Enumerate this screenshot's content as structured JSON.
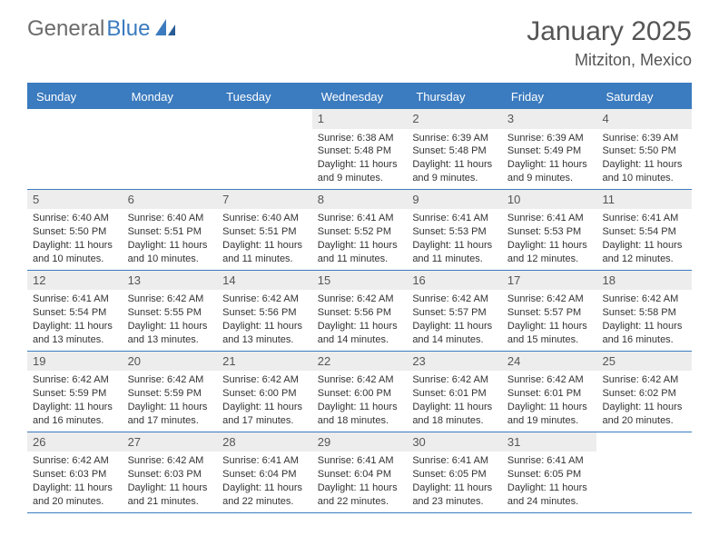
{
  "logo": {
    "text_gray": "General",
    "text_blue": "Blue"
  },
  "header": {
    "month_title": "January 2025",
    "location": "Mitziton, Mexico"
  },
  "colors": {
    "header_bar": "#3b7bbf",
    "weekday_bg": "#3b7bbf",
    "weekday_text": "#ffffff",
    "daynum_bg": "#ededed",
    "cell_border": "#3b7bbf",
    "body_text": "#333333",
    "title_text": "#555555"
  },
  "typography": {
    "month_title_fontsize": 30,
    "location_fontsize": 18,
    "weekday_fontsize": 13,
    "daynum_fontsize": 13,
    "cell_fontsize": 11
  },
  "calendar": {
    "weekdays": [
      "Sunday",
      "Monday",
      "Tuesday",
      "Wednesday",
      "Thursday",
      "Friday",
      "Saturday"
    ],
    "weeks": [
      [
        {
          "empty": true
        },
        {
          "empty": true
        },
        {
          "empty": true
        },
        {
          "day": "1",
          "sunrise": "Sunrise: 6:38 AM",
          "sunset": "Sunset: 5:48 PM",
          "daylight1": "Daylight: 11 hours",
          "daylight2": "and 9 minutes."
        },
        {
          "day": "2",
          "sunrise": "Sunrise: 6:39 AM",
          "sunset": "Sunset: 5:48 PM",
          "daylight1": "Daylight: 11 hours",
          "daylight2": "and 9 minutes."
        },
        {
          "day": "3",
          "sunrise": "Sunrise: 6:39 AM",
          "sunset": "Sunset: 5:49 PM",
          "daylight1": "Daylight: 11 hours",
          "daylight2": "and 9 minutes."
        },
        {
          "day": "4",
          "sunrise": "Sunrise: 6:39 AM",
          "sunset": "Sunset: 5:50 PM",
          "daylight1": "Daylight: 11 hours",
          "daylight2": "and 10 minutes."
        }
      ],
      [
        {
          "day": "5",
          "sunrise": "Sunrise: 6:40 AM",
          "sunset": "Sunset: 5:50 PM",
          "daylight1": "Daylight: 11 hours",
          "daylight2": "and 10 minutes."
        },
        {
          "day": "6",
          "sunrise": "Sunrise: 6:40 AM",
          "sunset": "Sunset: 5:51 PM",
          "daylight1": "Daylight: 11 hours",
          "daylight2": "and 10 minutes."
        },
        {
          "day": "7",
          "sunrise": "Sunrise: 6:40 AM",
          "sunset": "Sunset: 5:51 PM",
          "daylight1": "Daylight: 11 hours",
          "daylight2": "and 11 minutes."
        },
        {
          "day": "8",
          "sunrise": "Sunrise: 6:41 AM",
          "sunset": "Sunset: 5:52 PM",
          "daylight1": "Daylight: 11 hours",
          "daylight2": "and 11 minutes."
        },
        {
          "day": "9",
          "sunrise": "Sunrise: 6:41 AM",
          "sunset": "Sunset: 5:53 PM",
          "daylight1": "Daylight: 11 hours",
          "daylight2": "and 11 minutes."
        },
        {
          "day": "10",
          "sunrise": "Sunrise: 6:41 AM",
          "sunset": "Sunset: 5:53 PM",
          "daylight1": "Daylight: 11 hours",
          "daylight2": "and 12 minutes."
        },
        {
          "day": "11",
          "sunrise": "Sunrise: 6:41 AM",
          "sunset": "Sunset: 5:54 PM",
          "daylight1": "Daylight: 11 hours",
          "daylight2": "and 12 minutes."
        }
      ],
      [
        {
          "day": "12",
          "sunrise": "Sunrise: 6:41 AM",
          "sunset": "Sunset: 5:54 PM",
          "daylight1": "Daylight: 11 hours",
          "daylight2": "and 13 minutes."
        },
        {
          "day": "13",
          "sunrise": "Sunrise: 6:42 AM",
          "sunset": "Sunset: 5:55 PM",
          "daylight1": "Daylight: 11 hours",
          "daylight2": "and 13 minutes."
        },
        {
          "day": "14",
          "sunrise": "Sunrise: 6:42 AM",
          "sunset": "Sunset: 5:56 PM",
          "daylight1": "Daylight: 11 hours",
          "daylight2": "and 13 minutes."
        },
        {
          "day": "15",
          "sunrise": "Sunrise: 6:42 AM",
          "sunset": "Sunset: 5:56 PM",
          "daylight1": "Daylight: 11 hours",
          "daylight2": "and 14 minutes."
        },
        {
          "day": "16",
          "sunrise": "Sunrise: 6:42 AM",
          "sunset": "Sunset: 5:57 PM",
          "daylight1": "Daylight: 11 hours",
          "daylight2": "and 14 minutes."
        },
        {
          "day": "17",
          "sunrise": "Sunrise: 6:42 AM",
          "sunset": "Sunset: 5:57 PM",
          "daylight1": "Daylight: 11 hours",
          "daylight2": "and 15 minutes."
        },
        {
          "day": "18",
          "sunrise": "Sunrise: 6:42 AM",
          "sunset": "Sunset: 5:58 PM",
          "daylight1": "Daylight: 11 hours",
          "daylight2": "and 16 minutes."
        }
      ],
      [
        {
          "day": "19",
          "sunrise": "Sunrise: 6:42 AM",
          "sunset": "Sunset: 5:59 PM",
          "daylight1": "Daylight: 11 hours",
          "daylight2": "and 16 minutes."
        },
        {
          "day": "20",
          "sunrise": "Sunrise: 6:42 AM",
          "sunset": "Sunset: 5:59 PM",
          "daylight1": "Daylight: 11 hours",
          "daylight2": "and 17 minutes."
        },
        {
          "day": "21",
          "sunrise": "Sunrise: 6:42 AM",
          "sunset": "Sunset: 6:00 PM",
          "daylight1": "Daylight: 11 hours",
          "daylight2": "and 17 minutes."
        },
        {
          "day": "22",
          "sunrise": "Sunrise: 6:42 AM",
          "sunset": "Sunset: 6:00 PM",
          "daylight1": "Daylight: 11 hours",
          "daylight2": "and 18 minutes."
        },
        {
          "day": "23",
          "sunrise": "Sunrise: 6:42 AM",
          "sunset": "Sunset: 6:01 PM",
          "daylight1": "Daylight: 11 hours",
          "daylight2": "and 18 minutes."
        },
        {
          "day": "24",
          "sunrise": "Sunrise: 6:42 AM",
          "sunset": "Sunset: 6:01 PM",
          "daylight1": "Daylight: 11 hours",
          "daylight2": "and 19 minutes."
        },
        {
          "day": "25",
          "sunrise": "Sunrise: 6:42 AM",
          "sunset": "Sunset: 6:02 PM",
          "daylight1": "Daylight: 11 hours",
          "daylight2": "and 20 minutes."
        }
      ],
      [
        {
          "day": "26",
          "sunrise": "Sunrise: 6:42 AM",
          "sunset": "Sunset: 6:03 PM",
          "daylight1": "Daylight: 11 hours",
          "daylight2": "and 20 minutes."
        },
        {
          "day": "27",
          "sunrise": "Sunrise: 6:42 AM",
          "sunset": "Sunset: 6:03 PM",
          "daylight1": "Daylight: 11 hours",
          "daylight2": "and 21 minutes."
        },
        {
          "day": "28",
          "sunrise": "Sunrise: 6:41 AM",
          "sunset": "Sunset: 6:04 PM",
          "daylight1": "Daylight: 11 hours",
          "daylight2": "and 22 minutes."
        },
        {
          "day": "29",
          "sunrise": "Sunrise: 6:41 AM",
          "sunset": "Sunset: 6:04 PM",
          "daylight1": "Daylight: 11 hours",
          "daylight2": "and 22 minutes."
        },
        {
          "day": "30",
          "sunrise": "Sunrise: 6:41 AM",
          "sunset": "Sunset: 6:05 PM",
          "daylight1": "Daylight: 11 hours",
          "daylight2": "and 23 minutes."
        },
        {
          "day": "31",
          "sunrise": "Sunrise: 6:41 AM",
          "sunset": "Sunset: 6:05 PM",
          "daylight1": "Daylight: 11 hours",
          "daylight2": "and 24 minutes."
        },
        {
          "empty": true
        }
      ]
    ]
  }
}
